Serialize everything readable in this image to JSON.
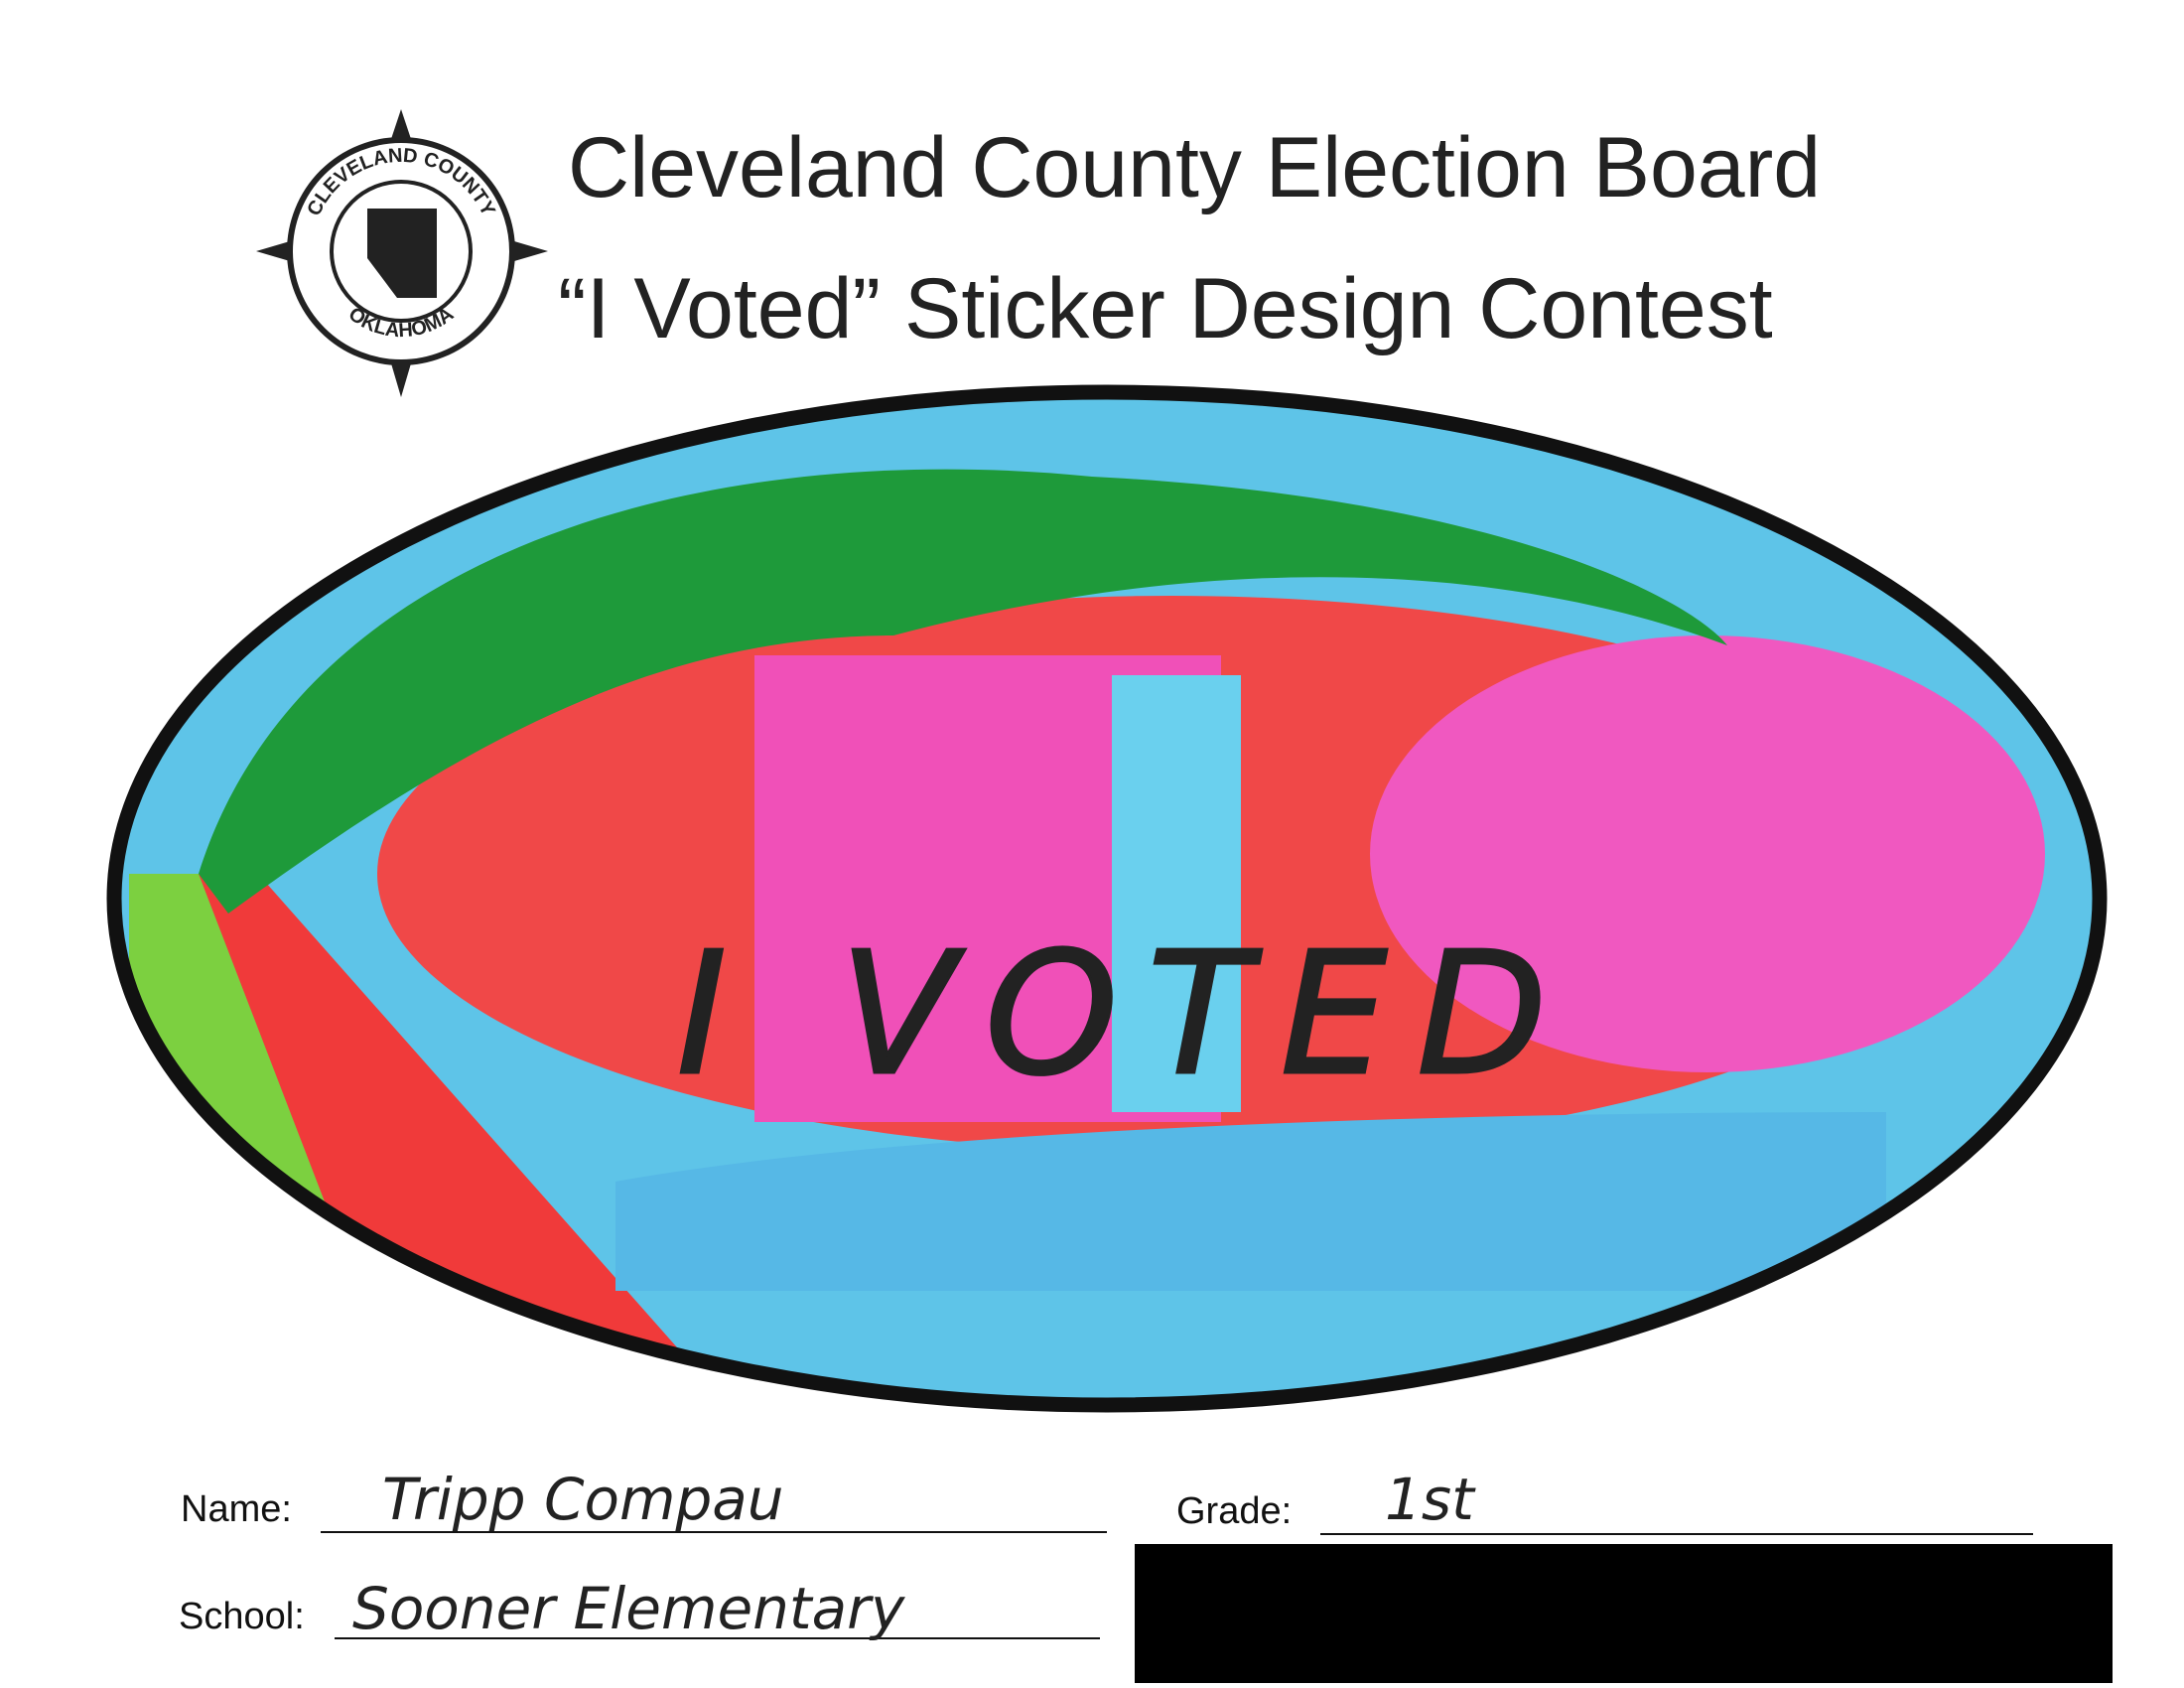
{
  "header": {
    "title": "Cleveland County Election Board",
    "subtitle": "“I Voted” Sticker Design Contest"
  },
  "seal": {
    "top_text": "CLEVELAND COUNTY",
    "bottom_text": "OKLAHOMA"
  },
  "drawing": {
    "text": "I VOTED"
  },
  "form": {
    "name": {
      "label": "Name:",
      "value": "Tripp Compau"
    },
    "grade": {
      "label": "Grade:",
      "value": "1st"
    },
    "school": {
      "label": "School:",
      "value": "Sooner Elementary"
    }
  }
}
